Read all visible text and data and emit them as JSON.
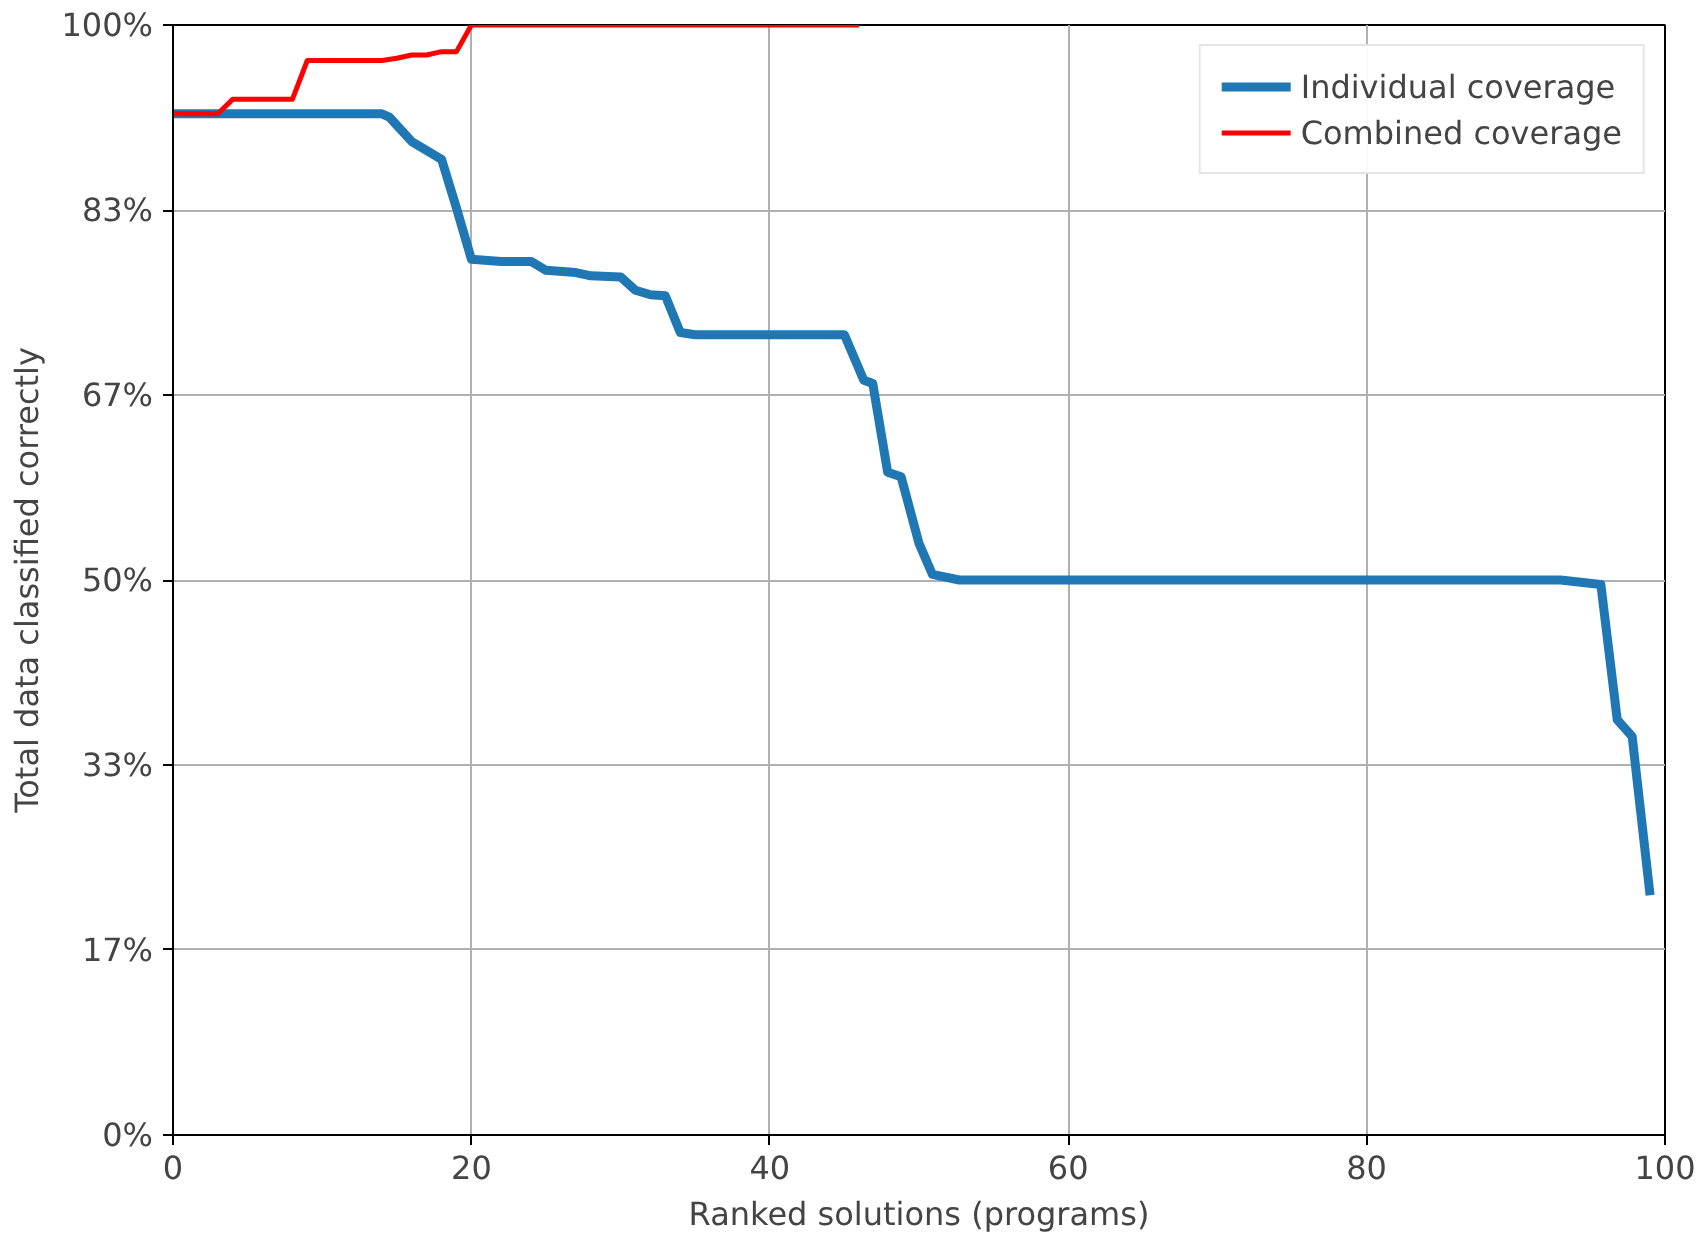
{
  "chart_data": {
    "type": "line",
    "xlabel": "Ranked solutions (programs)",
    "ylabel": "Total data classified correctly",
    "xlim": [
      0,
      100
    ],
    "xticks": [
      0,
      20,
      40,
      60,
      80,
      100
    ],
    "ylim": [
      0,
      100
    ],
    "yticks": [
      {
        "value": 0,
        "label": "0%"
      },
      {
        "value": 16.67,
        "label": "17%"
      },
      {
        "value": 33.33,
        "label": "33%"
      },
      {
        "value": 50,
        "label": "50%"
      },
      {
        "value": 66.67,
        "label": "67%"
      },
      {
        "value": 83.33,
        "label": "83%"
      },
      {
        "value": 100,
        "label": "100%"
      }
    ],
    "grid": true,
    "legend": "top right",
    "line_style": "solid",
    "marker": "none",
    "series": [
      {
        "name": "Individual coverage",
        "color": "#1f77b4",
        "x": [
          0,
          14,
          14.5,
          16,
          18,
          19,
          20,
          22,
          24,
          25,
          27,
          28,
          30,
          31,
          32,
          33,
          34,
          35,
          45,
          46.3,
          46.9,
          47.9,
          48.8,
          50,
          50.9,
          52.7,
          93,
          95.7,
          96.8,
          97.8,
          99
        ],
        "values": [
          92,
          92,
          91.7,
          89.5,
          87.9,
          83.5,
          78.9,
          78.7,
          78.7,
          77.9,
          77.7,
          77.4,
          77.3,
          76.1,
          75.7,
          75.6,
          72.3,
          72.1,
          72.1,
          68,
          67.7,
          59.7,
          59.3,
          53.3,
          50.5,
          50,
          50,
          49.6,
          37.4,
          35.9,
          21.6
        ]
      },
      {
        "name": "Combined coverage",
        "color": "#ff0000",
        "x": [
          0,
          3,
          4,
          8,
          9,
          14,
          15,
          16,
          17,
          18,
          19,
          20,
          46
        ],
        "values": [
          92,
          92,
          93.3,
          93.3,
          96.8,
          96.8,
          97,
          97.3,
          97.3,
          97.6,
          97.6,
          100,
          100
        ]
      }
    ]
  }
}
